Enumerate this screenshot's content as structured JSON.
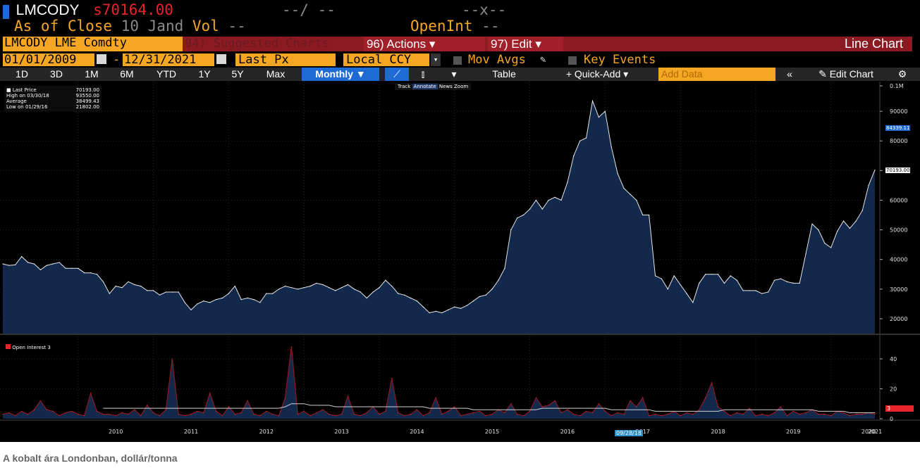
{
  "header": {
    "ticker": "LMCODY",
    "price": "s70164.00",
    "change": "--/ --",
    "hilo": "--x--",
    "as_of": "As of Close",
    "date": "10 Jand",
    "vol_label": "Vol",
    "vol_value": "--",
    "openint_label": "OpenInt",
    "openint_value": "--"
  },
  "toolbar1": {
    "security": "LMCODY LME Comdty",
    "suggested": "94) Suggested Charts",
    "actions": "96) Actions",
    "edit": "97) Edit",
    "chart_type": "Line Chart"
  },
  "toolbar2": {
    "start_date": "01/01/2009",
    "end_date": "12/31/2021",
    "field": "Last Px",
    "currency": "Local CCY",
    "mov_avgs": "Mov Avgs",
    "key_events": "Key Events"
  },
  "toolbar3": {
    "periods": [
      "1D",
      "3D",
      "1M",
      "6M",
      "YTD",
      "1Y",
      "5Y",
      "Max"
    ],
    "frequency": "Monthly",
    "table": "Table",
    "quick_add": "+ Quick-Add",
    "add_data": "Add Data",
    "edit_chart": "Edit Chart"
  },
  "legend": {
    "rows": [
      {
        "label": "Last Price",
        "value": "70193.00"
      },
      {
        "label": "High on 03/30/18",
        "value": "93550.00"
      },
      {
        "label": "Average",
        "value": "38499.43"
      },
      {
        "label": "Low on 01/29/16",
        "value": "21802.00"
      }
    ],
    "sub_label": "Open Interest 3"
  },
  "modes": {
    "track": "Track",
    "annotate": "Annotate",
    "news": "News",
    "zoom": "Zoom"
  },
  "price_badges": {
    "ma": "84339.11",
    "last": "70193.00"
  },
  "oi_badge": "3",
  "cursor_date": "09/28/18",
  "caption": "A kobalt ára Londonban, dollár/tonna",
  "chart_data": [
    {
      "type": "area",
      "name": "Last Price",
      "x_start": "2009-01",
      "frequency": "monthly",
      "ylim": [
        15000,
        100000
      ],
      "yticks": [
        20000,
        30000,
        40000,
        50000,
        60000,
        70000,
        80000,
        90000
      ],
      "ytick_labels": [
        "20000",
        "30000",
        "40000",
        "50000",
        "60000",
        "70000",
        "80000",
        "90000"
      ],
      "ytop_label": "0.1M",
      "values": [
        38500,
        38000,
        38200,
        41000,
        39000,
        38500,
        36500,
        38000,
        38500,
        39000,
        37000,
        37000,
        37000,
        35500,
        35500,
        35000,
        32500,
        28500,
        31000,
        30500,
        32500,
        31500,
        31000,
        29500,
        29500,
        28000,
        29000,
        29000,
        29000,
        25500,
        23000,
        25000,
        26000,
        25500,
        26500,
        27000,
        28500,
        31000,
        26500,
        27000,
        26500,
        25500,
        28500,
        28500,
        30000,
        31000,
        30500,
        30000,
        30500,
        31000,
        32000,
        31500,
        30500,
        29500,
        30500,
        31500,
        30000,
        29000,
        27000,
        29000,
        30500,
        33000,
        31000,
        28500,
        28000,
        27000,
        26000,
        24000,
        22000,
        22500,
        22000,
        23000,
        24000,
        23500,
        24500,
        26000,
        27500,
        28000,
        30000,
        33000,
        37000,
        50000,
        54000,
        55000,
        57000,
        60000,
        57000,
        60000,
        61000,
        60000,
        66000,
        75000,
        80000,
        81000,
        93500,
        88000,
        90000,
        78000,
        69000,
        64000,
        62000,
        60000,
        55000,
        55000,
        34500,
        33500,
        30000,
        34500,
        31500,
        28500,
        25500,
        32000,
        35000,
        35000,
        35000,
        32000,
        34500,
        33000,
        29500,
        29500,
        29500,
        28500,
        29000,
        33000,
        33500,
        32500,
        32000,
        32000,
        42000,
        52000,
        50000,
        45500,
        44000,
        49500,
        53000,
        50500,
        53000,
        56500,
        65000,
        70193
      ],
      "xtick_labels": [
        "2010",
        "2011",
        "2012",
        "2013",
        "2014",
        "2015",
        "2016",
        "2017",
        "2018",
        "2019",
        "2020",
        "2021"
      ]
    },
    {
      "type": "area",
      "name": "Open Interest 3",
      "x_start": "2009-01",
      "frequency": "monthly",
      "ylim": [
        0,
        55
      ],
      "yticks": [
        0,
        20,
        40
      ],
      "ytick_labels": [
        "0",
        "20",
        "40"
      ],
      "values": [
        3,
        4,
        2,
        5,
        3,
        6,
        12,
        6,
        5,
        2,
        4,
        5,
        3,
        2,
        17,
        5,
        3,
        3,
        2,
        4,
        3,
        6,
        2,
        9,
        4,
        2,
        6,
        40,
        3,
        2,
        3,
        5,
        4,
        17,
        5,
        2,
        8,
        3,
        4,
        12,
        3,
        2,
        5,
        3,
        2,
        14,
        48,
        3,
        5,
        2,
        4,
        6,
        3,
        2,
        3,
        15,
        3,
        2,
        4,
        8,
        3,
        5,
        27,
        4,
        2,
        3,
        6,
        2,
        4,
        14,
        3,
        5,
        8,
        2,
        3,
        4,
        5,
        2,
        3,
        6,
        4,
        10,
        3,
        2,
        5,
        14,
        8,
        9,
        12,
        4,
        6,
        3,
        2,
        5,
        4,
        10,
        5,
        2,
        4,
        3,
        12,
        8,
        14,
        2,
        3,
        2,
        3,
        5,
        2,
        4,
        3,
        6,
        14,
        24,
        8,
        5,
        2,
        4,
        3,
        7,
        2,
        3,
        2,
        4,
        8,
        2,
        5,
        3,
        4,
        6,
        3,
        3,
        2,
        5,
        4,
        2,
        3,
        3,
        4,
        3
      ],
      "ma_values": [
        null,
        null,
        null,
        null,
        null,
        null,
        null,
        null,
        null,
        null,
        null,
        null,
        null,
        null,
        null,
        null,
        7,
        7,
        7,
        7,
        7,
        7,
        7,
        7,
        7,
        7,
        7,
        7,
        7,
        7,
        7,
        7,
        7,
        7,
        7,
        7,
        7,
        7,
        7,
        7,
        7,
        7,
        7,
        7,
        7,
        8,
        10,
        10,
        10,
        9,
        9,
        9,
        9,
        8,
        8,
        8,
        8,
        8,
        8,
        8,
        8,
        8,
        8,
        8,
        8,
        8,
        8,
        8,
        7,
        7,
        7,
        7,
        7,
        7,
        7,
        6,
        6,
        6,
        6,
        6,
        6,
        6,
        6,
        6,
        6,
        6,
        7,
        7,
        7,
        7,
        7,
        7,
        7,
        7,
        7,
        7,
        7,
        6,
        6,
        6,
        6,
        6,
        6,
        6,
        5,
        5,
        5,
        5,
        5,
        5,
        5,
        5,
        5,
        5,
        5,
        6,
        6,
        6,
        6,
        6,
        6,
        6,
        6,
        6,
        6,
        6,
        6,
        6,
        6,
        6,
        5,
        5,
        5,
        5,
        5,
        4,
        4,
        4,
        4,
        4
      ]
    }
  ],
  "colors": {
    "amber": "#f5a623",
    "red": "#e8242b",
    "bar_red": "#8b1a22",
    "blue_btn": "#1f6bd6",
    "area_fill": "#13294b",
    "line": "#ffffff"
  }
}
